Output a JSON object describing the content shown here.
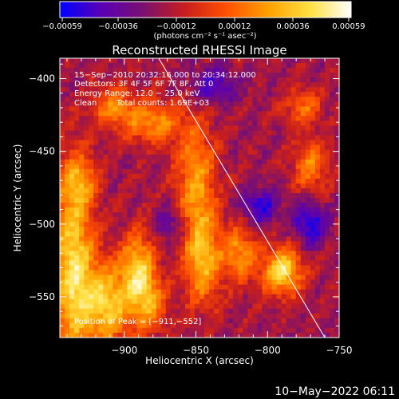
{
  "chart_data": {
    "type": "heatmap",
    "title": "Reconstructed RHESSI Image",
    "xlabel": "Heliocentric X (arcsec)",
    "ylabel": "Heliocentric Y (arcsec)",
    "xlim": [
      -945,
      -750
    ],
    "ylim": [
      -578,
      -386
    ],
    "x_ticks": [
      -900,
      -850,
      -800,
      -750
    ],
    "x_tick_labels": [
      "−900",
      "−850",
      "−800",
      "−750"
    ],
    "y_ticks": [
      -400,
      -450,
      -500,
      -550
    ],
    "y_tick_labels": [
      "−400",
      "−450",
      "−500",
      "−550"
    ],
    "colorbar": {
      "range": [
        -0.0006,
        0.0006
      ],
      "ticks": [
        -0.00059,
        -0.00036,
        -0.00012,
        0.00012,
        0.00036,
        0.00059
      ],
      "tick_labels": [
        "−0.00059",
        "−0.00036",
        "−0.00012",
        "0.00012",
        "0.00036",
        "0.00059"
      ],
      "unit_label": "(photons cm⁻² s⁻¹ asec⁻²)",
      "colors": [
        "#0000ff",
        "#5a00b4",
        "#7a1070",
        "#c81e1e",
        "#ff5000",
        "#ffa000",
        "#ffe040",
        "#ffffff"
      ]
    },
    "annotations": {
      "time_range": "15−Sep−2010 20:32:16.000 to 20:34:12.000",
      "detectors": "Detectors: 3F 4F 5F 6F 7F 8F, Att 0",
      "energy": "Energy Range: 12.0 − 25.0 keV",
      "clean": "Clean",
      "total_counts": "Total counts: 1.69E+03",
      "peak": "Position of Peak = [−911,−552]"
    },
    "limb_line": [
      [
        -876,
        -386
      ],
      [
        -760,
        -578
      ]
    ],
    "sources": [
      {
        "x": -936,
        "y": -530,
        "sx": 10,
        "sy": 45,
        "amp": 0.0006
      },
      {
        "x": -912,
        "y": -555,
        "sx": 12,
        "sy": 20,
        "amp": 0.00055
      },
      {
        "x": -890,
        "y": -530,
        "sx": 8,
        "sy": 18,
        "amp": 0.0005
      },
      {
        "x": -882,
        "y": -555,
        "sx": 9,
        "sy": 14,
        "amp": 0.00035
      },
      {
        "x": -908,
        "y": -420,
        "sx": 10,
        "sy": 10,
        "amp": 0.00035
      },
      {
        "x": -880,
        "y": -430,
        "sx": 14,
        "sy": 10,
        "amp": 0.0004
      },
      {
        "x": -850,
        "y": -470,
        "sx": 10,
        "sy": 30,
        "amp": 0.0004
      },
      {
        "x": -845,
        "y": -525,
        "sx": 9,
        "sy": 22,
        "amp": 0.00045
      },
      {
        "x": -820,
        "y": -520,
        "sx": 8,
        "sy": 14,
        "amp": 0.0004
      },
      {
        "x": -790,
        "y": -532,
        "sx": 10,
        "sy": 12,
        "amp": 0.0006
      },
      {
        "x": -770,
        "y": -460,
        "sx": 9,
        "sy": 12,
        "amp": 0.00035
      },
      {
        "x": -775,
        "y": -420,
        "sx": 9,
        "sy": 9,
        "amp": 0.0003
      },
      {
        "x": -930,
        "y": -470,
        "sx": 9,
        "sy": 12,
        "amp": 0.0003
      },
      {
        "x": -838,
        "y": -405,
        "sx": 12,
        "sy": 9,
        "amp": -0.0003
      },
      {
        "x": -805,
        "y": -488,
        "sx": 9,
        "sy": 9,
        "amp": -0.00035
      },
      {
        "x": -770,
        "y": -500,
        "sx": 8,
        "sy": 10,
        "amp": -0.0004
      },
      {
        "x": -868,
        "y": -500,
        "sx": 8,
        "sy": 8,
        "amp": -0.00025
      }
    ]
  },
  "footer": {
    "timestamp": "10−May−2022 06:11"
  }
}
